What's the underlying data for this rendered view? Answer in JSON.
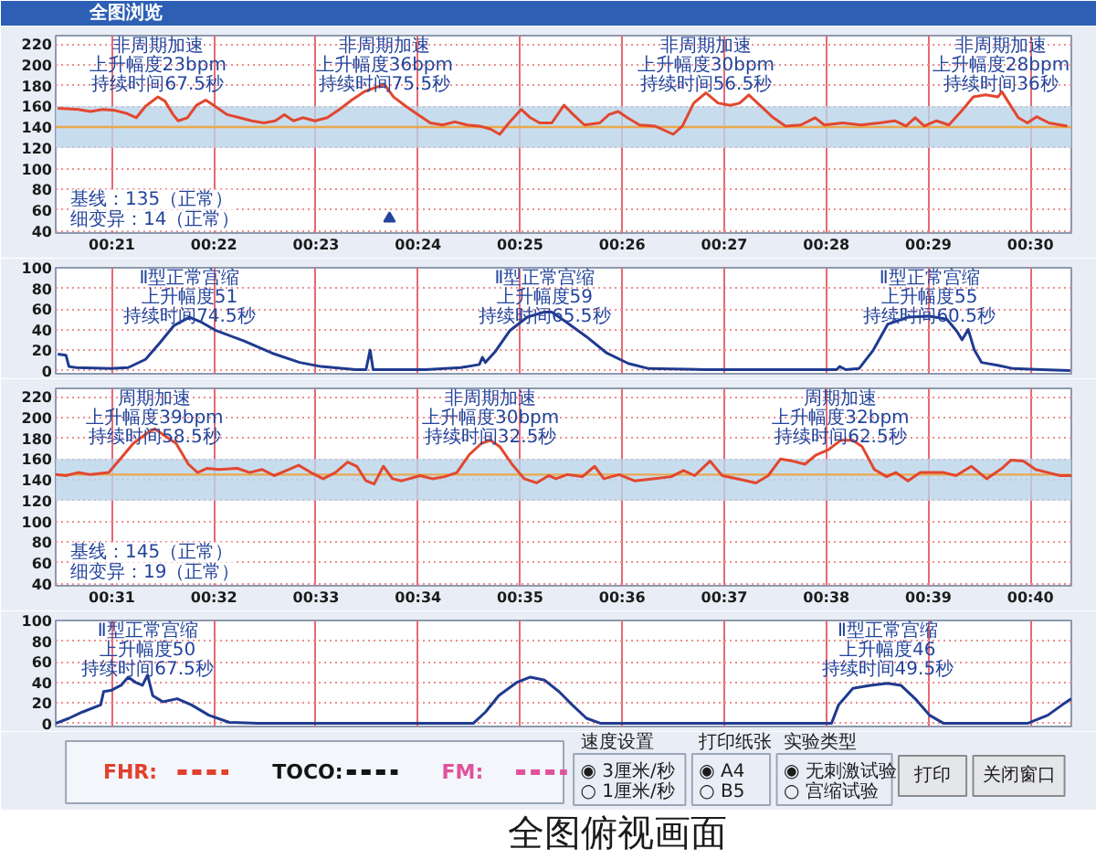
{
  "chart_data": [
    {
      "type": "line",
      "title": "全图浏览",
      "xlim": [
        20.45,
        30.4
      ],
      "ylim": [
        38,
        228
      ],
      "xticks": [
        {
          "value": 21,
          "label": "00:21"
        },
        {
          "value": 22,
          "label": "00:22"
        },
        {
          "value": 23,
          "label": "00:23"
        },
        {
          "value": 24,
          "label": "00:24"
        },
        {
          "value": 25,
          "label": "00:25"
        },
        {
          "value": 26,
          "label": "00:26"
        },
        {
          "value": 27,
          "label": "00:27"
        },
        {
          "value": 28,
          "label": "00:28"
        },
        {
          "value": 29,
          "label": "00:29"
        },
        {
          "value": 30,
          "label": "00:30"
        }
      ],
      "yticks": [
        40,
        60,
        80,
        100,
        120,
        140,
        160,
        180,
        200,
        220
      ],
      "grid": true,
      "bands": [
        {
          "axis": "y",
          "from": 120,
          "to": 160,
          "color": "#b9d4ea"
        }
      ],
      "ref_lines": [
        {
          "axis": "y",
          "value": 140,
          "color": "#e9a84c"
        }
      ],
      "series": [
        {
          "color": "#e2472f",
          "x": [
            20.47,
            20.67,
            20.79,
            20.91,
            21.03,
            21.15,
            21.24,
            21.33,
            21.45,
            21.52,
            21.6,
            21.65,
            21.74,
            21.83,
            21.92,
            22.01,
            22.13,
            22.25,
            22.37,
            22.49,
            22.6,
            22.69,
            22.78,
            22.87,
            22.99,
            23.11,
            23.23,
            23.35,
            23.47,
            23.58,
            23.67,
            23.76,
            23.88,
            24.0,
            24.12,
            24.24,
            24.36,
            24.48,
            24.6,
            24.71,
            24.8,
            24.89,
            25.01,
            25.1,
            25.19,
            25.31,
            25.43,
            25.52,
            25.63,
            25.78,
            25.87,
            25.96,
            26.05,
            26.17,
            26.32,
            26.5,
            26.59,
            26.7,
            26.82,
            26.94,
            27.06,
            27.15,
            27.24,
            27.36,
            27.48,
            27.6,
            27.75,
            27.89,
            27.98,
            28.16,
            28.34,
            28.52,
            28.67,
            28.78,
            28.87,
            28.96,
            29.08,
            29.2,
            29.32,
            29.44,
            29.56,
            29.68,
            29.72,
            29.79,
            29.88,
            29.97,
            30.06,
            30.18,
            30.36
          ],
          "values": [
            158,
            157,
            155,
            157,
            156,
            153,
            149,
            160,
            169,
            165,
            152,
            146,
            149,
            161,
            166,
            160,
            152,
            149,
            146,
            144,
            146,
            152,
            146,
            149,
            146,
            149,
            157,
            166,
            174,
            178,
            181,
            169,
            160,
            152,
            144,
            142,
            145,
            142,
            141,
            138,
            133,
            144,
            157,
            149,
            144,
            144,
            161,
            152,
            142,
            144,
            152,
            155,
            149,
            142,
            141,
            133,
            141,
            163,
            173,
            163,
            161,
            163,
            171,
            160,
            149,
            141,
            142,
            149,
            142,
            144,
            142,
            144,
            146,
            141,
            149,
            141,
            146,
            142,
            155,
            169,
            171,
            169,
            174,
            163,
            149,
            144,
            150,
            144,
            141
          ]
        },
        {
          "type": "scatter",
          "marker": "triangle",
          "color": "#23449c",
          "x": [
            23.72
          ],
          "values": [
            52
          ]
        }
      ],
      "annotations": [
        "基线：135（正常）",
        "细变异：14（正常）",
        {
          "text": "非周期加速",
          "x": 21.45,
          "y": 169
        },
        {
          "text": "上升幅度23bpm",
          "x": 21.45,
          "y": 169
        },
        {
          "text": "持续时间67.5秒",
          "x": 21.45,
          "y": 169
        },
        {
          "text": "非周期加速",
          "x": 23.67,
          "y": 181
        },
        {
          "text": "上升幅度36bpm",
          "x": 23.67,
          "y": 181
        },
        {
          "text": "持续时间75.5秒",
          "x": 23.67,
          "y": 181
        },
        {
          "text": "非周期加速",
          "x": 26.82,
          "y": 173
        },
        {
          "text": "上升幅度30bpm",
          "x": 26.82,
          "y": 173
        },
        {
          "text": "持续时间56.5秒",
          "x": 26.82,
          "y": 173
        },
        {
          "text": "非周期加速",
          "x": 29.72,
          "y": 174
        },
        {
          "text": "上升幅度28bpm",
          "x": 29.72,
          "y": 174
        },
        {
          "text": "持续时间36秒",
          "x": 29.72,
          "y": 174
        }
      ]
    },
    {
      "type": "line",
      "xlim": [
        20.45,
        30.4
      ],
      "ylim": [
        -3,
        100
      ],
      "xticks": [
        21,
        22,
        23,
        24,
        25,
        26,
        27,
        28,
        29,
        30
      ],
      "yticks": [
        0,
        20,
        40,
        60,
        80,
        100
      ],
      "grid": true,
      "tick_labels": "y",
      "series": [
        {
          "color": "#1f3a8f",
          "x": [
            20.47,
            20.55,
            20.58,
            20.65,
            20.99,
            21.16,
            21.33,
            21.47,
            21.61,
            21.76,
            21.88,
            22.02,
            22.29,
            22.57,
            22.84,
            23.05,
            23.39,
            23.49,
            23.53,
            23.56,
            24.07,
            24.42,
            24.6,
            24.63,
            24.66,
            24.76,
            24.9,
            25.07,
            25.24,
            25.31,
            25.44,
            25.65,
            25.85,
            26.06,
            26.26,
            26.81,
            27.5,
            28.1,
            28.13,
            28.19,
            28.32,
            28.46,
            28.6,
            28.8,
            29.01,
            29.18,
            29.28,
            29.33,
            29.39,
            29.45,
            29.52,
            29.69,
            29.83,
            30.11,
            30.39
          ],
          "values": [
            16,
            15,
            4,
            3,
            2,
            3,
            11,
            27,
            44,
            52,
            47,
            39,
            29,
            17,
            8,
            4,
            1,
            1,
            20,
            1,
            1,
            3,
            6,
            13,
            8,
            19,
            39,
            52,
            57,
            57,
            48,
            33,
            17,
            7,
            2,
            1,
            1,
            1,
            4,
            1,
            2,
            20,
            45,
            52,
            53,
            50,
            38,
            30,
            40,
            20,
            8,
            5,
            2,
            1,
            0
          ]
        }
      ],
      "annotations": [
        {
          "text": "Ⅱ型正常宫缩",
          "x": 21.76,
          "y": 52
        },
        {
          "text": "上升幅度51",
          "x": 21.76,
          "y": 52
        },
        {
          "text": "持续时间74.5秒",
          "x": 21.76,
          "y": 52
        },
        {
          "text": "Ⅱ型正常宫缩",
          "x": 25.24,
          "y": 57
        },
        {
          "text": "上升幅度59",
          "x": 25.24,
          "y": 57
        },
        {
          "text": "持续时间65.5秒",
          "x": 25.24,
          "y": 57
        },
        {
          "text": "Ⅱ型正常宫缩",
          "x": 29.01,
          "y": 53
        },
        {
          "text": "上升幅度55",
          "x": 29.01,
          "y": 53
        },
        {
          "text": "持续时间60.5秒",
          "x": 29.01,
          "y": 53
        }
      ]
    },
    {
      "type": "line",
      "xlim": [
        30.45,
        40.4
      ],
      "ylim": [
        38,
        228
      ],
      "xticks": [
        {
          "value": 31,
          "label": "00:31"
        },
        {
          "value": 32,
          "label": "00:32"
        },
        {
          "value": 33,
          "label": "00:33"
        },
        {
          "value": 34,
          "label": "00:34"
        },
        {
          "value": 35,
          "label": "00:35"
        },
        {
          "value": 36,
          "label": "00:36"
        },
        {
          "value": 37,
          "label": "00:37"
        },
        {
          "value": 38,
          "label": "00:38"
        },
        {
          "value": 39,
          "label": "00:39"
        },
        {
          "value": 40,
          "label": "00:40"
        }
      ],
      "yticks": [
        40,
        60,
        80,
        100,
        120,
        140,
        160,
        180,
        200,
        220
      ],
      "grid": true,
      "bands": [
        {
          "axis": "y",
          "from": 120,
          "to": 160,
          "color": "#b9d4ea"
        }
      ],
      "ref_lines": [
        {
          "axis": "y",
          "value": 145,
          "color": "#e9a84c"
        }
      ],
      "series": [
        {
          "color": "#e2472f",
          "x": [
            30.45,
            30.55,
            30.67,
            30.79,
            30.97,
            31.09,
            31.21,
            31.36,
            31.42,
            31.51,
            31.63,
            31.75,
            31.84,
            31.93,
            32.05,
            32.23,
            32.35,
            32.47,
            32.59,
            32.71,
            32.83,
            32.95,
            33.07,
            33.19,
            33.31,
            33.4,
            33.49,
            33.57,
            33.66,
            33.75,
            33.84,
            34.02,
            34.14,
            34.26,
            34.38,
            34.5,
            34.62,
            34.71,
            34.8,
            34.92,
            35.04,
            35.16,
            35.28,
            35.35,
            35.46,
            35.61,
            35.73,
            35.82,
            35.97,
            36.12,
            36.3,
            36.48,
            36.6,
            36.71,
            36.86,
            36.98,
            37.13,
            37.31,
            37.43,
            37.55,
            37.67,
            37.79,
            37.9,
            38.02,
            38.14,
            38.26,
            38.35,
            38.47,
            38.59,
            38.68,
            38.8,
            38.92,
            39.04,
            39.15,
            39.27,
            39.42,
            39.57,
            39.72,
            39.81,
            39.93,
            40.05,
            40.17,
            40.29,
            40.4
          ],
          "values": [
            145,
            144,
            147,
            145,
            147,
            161,
            175,
            186,
            189,
            183,
            175,
            155,
            147,
            151,
            150,
            151,
            147,
            150,
            144,
            149,
            154,
            147,
            141,
            147,
            157,
            153,
            139,
            136,
            153,
            141,
            139,
            144,
            141,
            143,
            147,
            164,
            175,
            178,
            172,
            155,
            141,
            137,
            144,
            141,
            145,
            143,
            153,
            141,
            145,
            139,
            141,
            143,
            149,
            144,
            158,
            144,
            141,
            137,
            144,
            160,
            158,
            155,
            164,
            169,
            178,
            178,
            172,
            150,
            143,
            147,
            139,
            147,
            147,
            147,
            144,
            153,
            141,
            151,
            159,
            158,
            150,
            147,
            144,
            144
          ]
        }
      ],
      "annotations": [
        "基线：145（正常）",
        "细变异：19（正常）",
        {
          "text": "周期加速",
          "x": 31.42,
          "y": 189
        },
        {
          "text": "上升幅度39bpm",
          "x": 31.42,
          "y": 189
        },
        {
          "text": "持续时间58.5秒",
          "x": 31.42,
          "y": 189
        },
        {
          "text": "非周期加速",
          "x": 34.71,
          "y": 178
        },
        {
          "text": "上升幅度30bpm",
          "x": 34.71,
          "y": 178
        },
        {
          "text": "持续时间32.5秒",
          "x": 34.71,
          "y": 178
        },
        {
          "text": "周期加速",
          "x": 38.14,
          "y": 178
        },
        {
          "text": "上升幅度32bpm",
          "x": 38.14,
          "y": 178
        },
        {
          "text": "持续时间62.5秒",
          "x": 38.14,
          "y": 178
        }
      ]
    },
    {
      "type": "line",
      "xlim": [
        30.45,
        40.4
      ],
      "ylim": [
        -3,
        100
      ],
      "xticks": [
        31,
        32,
        33,
        34,
        35,
        36,
        37,
        38,
        39,
        40
      ],
      "yticks": [
        0,
        20,
        40,
        60,
        80,
        100
      ],
      "grid": true,
      "tick_labels": "y",
      "series": [
        {
          "color": "#1f3a8f",
          "x": [
            30.45,
            30.58,
            30.71,
            30.89,
            30.92,
            30.99,
            31.09,
            31.16,
            31.23,
            31.3,
            31.35,
            31.4,
            31.5,
            31.64,
            31.78,
            31.95,
            32.15,
            32.43,
            34.54,
            34.66,
            34.79,
            34.97,
            35.1,
            35.24,
            35.38,
            35.51,
            35.65,
            35.79,
            38.05,
            38.12,
            38.26,
            38.43,
            38.6,
            38.73,
            38.87,
            39.01,
            39.15,
            39.97,
            40.17,
            40.31,
            40.4
          ],
          "values": [
            0,
            5,
            11,
            18,
            31,
            32,
            37,
            45,
            40,
            37,
            47,
            27,
            21,
            24,
            18,
            8,
            1,
            0,
            0,
            11,
            27,
            40,
            45,
            42,
            31,
            18,
            5,
            0,
            0,
            18,
            34,
            37,
            39,
            37,
            24,
            8,
            0,
            0,
            8,
            18,
            24
          ]
        }
      ],
      "annotations": [
        {
          "text": "Ⅱ型正常宫缩",
          "x": 31.35,
          "y": 47
        },
        {
          "text": "上升幅度50",
          "x": 31.35,
          "y": 47
        },
        {
          "text": "持续时间67.5秒",
          "x": 31.35,
          "y": 47
        },
        {
          "text": "Ⅱ型正常宫缩",
          "x": 38.6,
          "y": 39
        },
        {
          "text": "上升幅度46",
          "x": 38.6,
          "y": 39
        },
        {
          "text": "持续时间49.5秒",
          "x": 38.6,
          "y": 39
        }
      ]
    },
    {
      "type": "other",
      "title": "全图俯视画面",
      "series": [
        {
          "name": "FHR:",
          "color": "#e2402e"
        },
        {
          "name": "TOCO:",
          "color": "#141414"
        },
        {
          "name": "FM:",
          "color": "#e0529c"
        }
      ],
      "annotations": [
        "速度设置",
        "◉ 3厘米/秒",
        "○ 1厘米/秒",
        "打印纸张",
        "◉ A4",
        "○ B5",
        "实验类型",
        "◉ 无刺激试验",
        "○ 宫缩试验",
        "打印",
        "关闭窗口"
      ]
    }
  ]
}
